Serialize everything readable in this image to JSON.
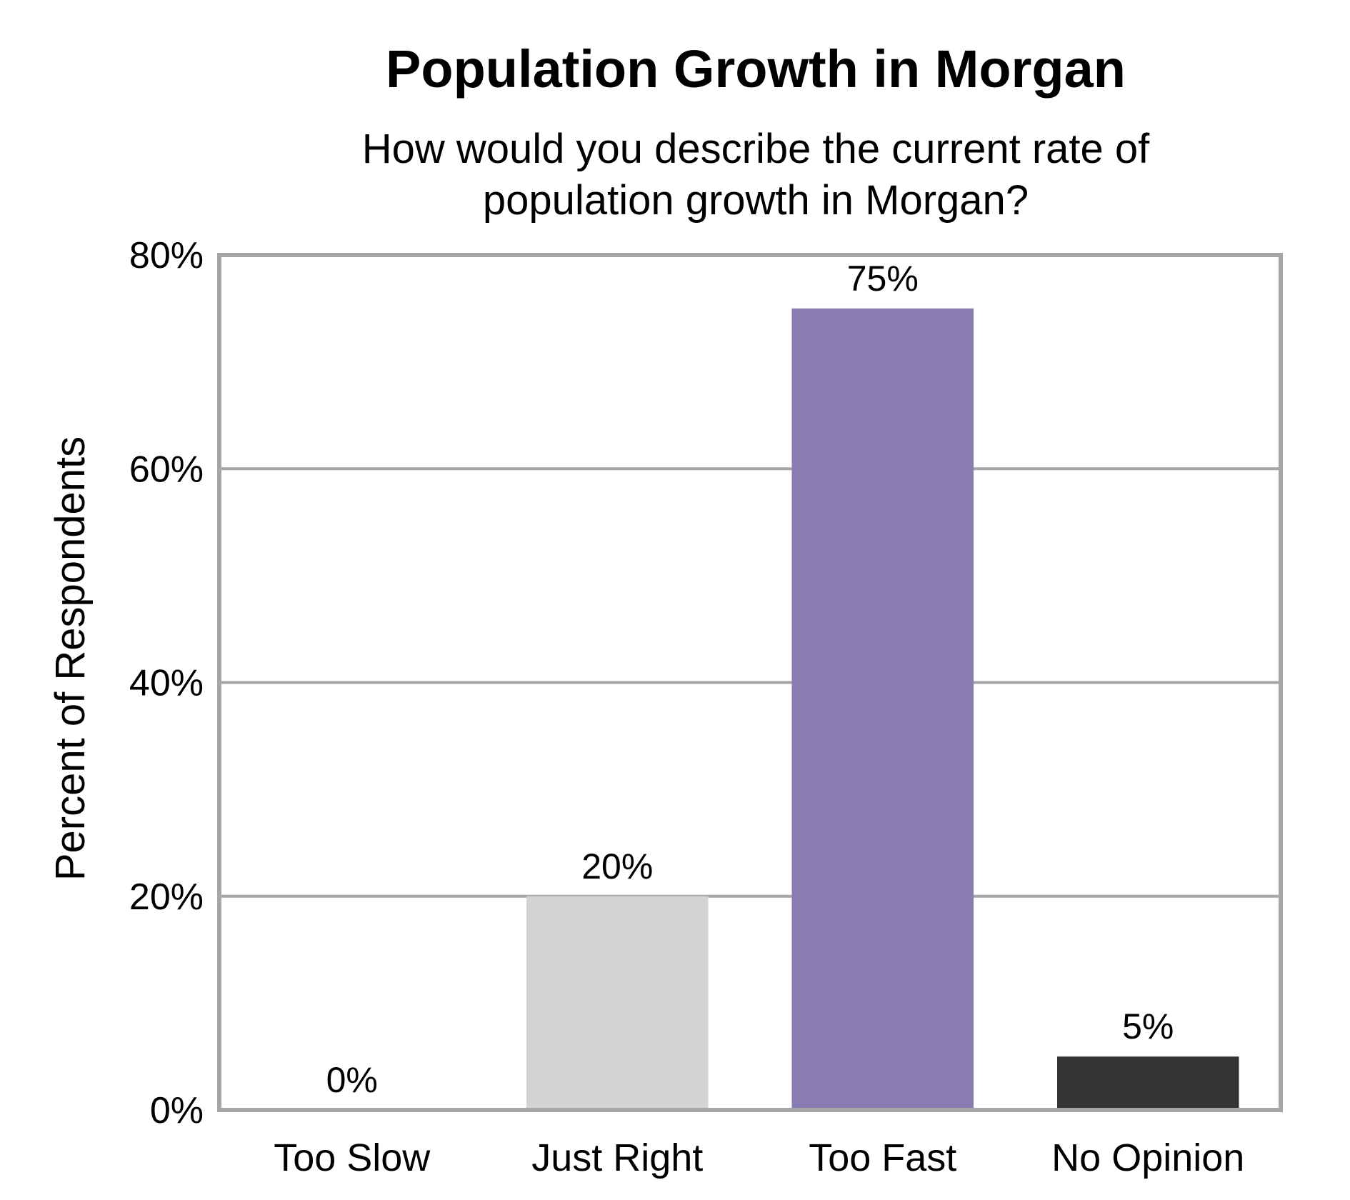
{
  "chart_data": {
    "type": "bar",
    "title": "Population Growth in Morgan",
    "subtitle_lines": [
      "How would you describe the current rate of",
      "population growth in Morgan?"
    ],
    "xlabel": "",
    "ylabel": "Percent of Respondents",
    "categories": [
      "Too Slow",
      "Just Right",
      "Too Fast",
      "No Opinion"
    ],
    "values": [
      0,
      20,
      75,
      5
    ],
    "data_labels": [
      "0%",
      "20%",
      "75%",
      "5%"
    ],
    "bar_colors": [
      "#d3d3d3",
      "#d3d3d3",
      "#897cb5",
      "#333333"
    ],
    "ylim": [
      0,
      80
    ],
    "yticks": [
      0,
      20,
      40,
      60,
      80
    ],
    "ytick_labels": [
      "0%",
      "20%",
      "40%",
      "60%",
      "80%"
    ],
    "grid": true,
    "legend": "none"
  }
}
